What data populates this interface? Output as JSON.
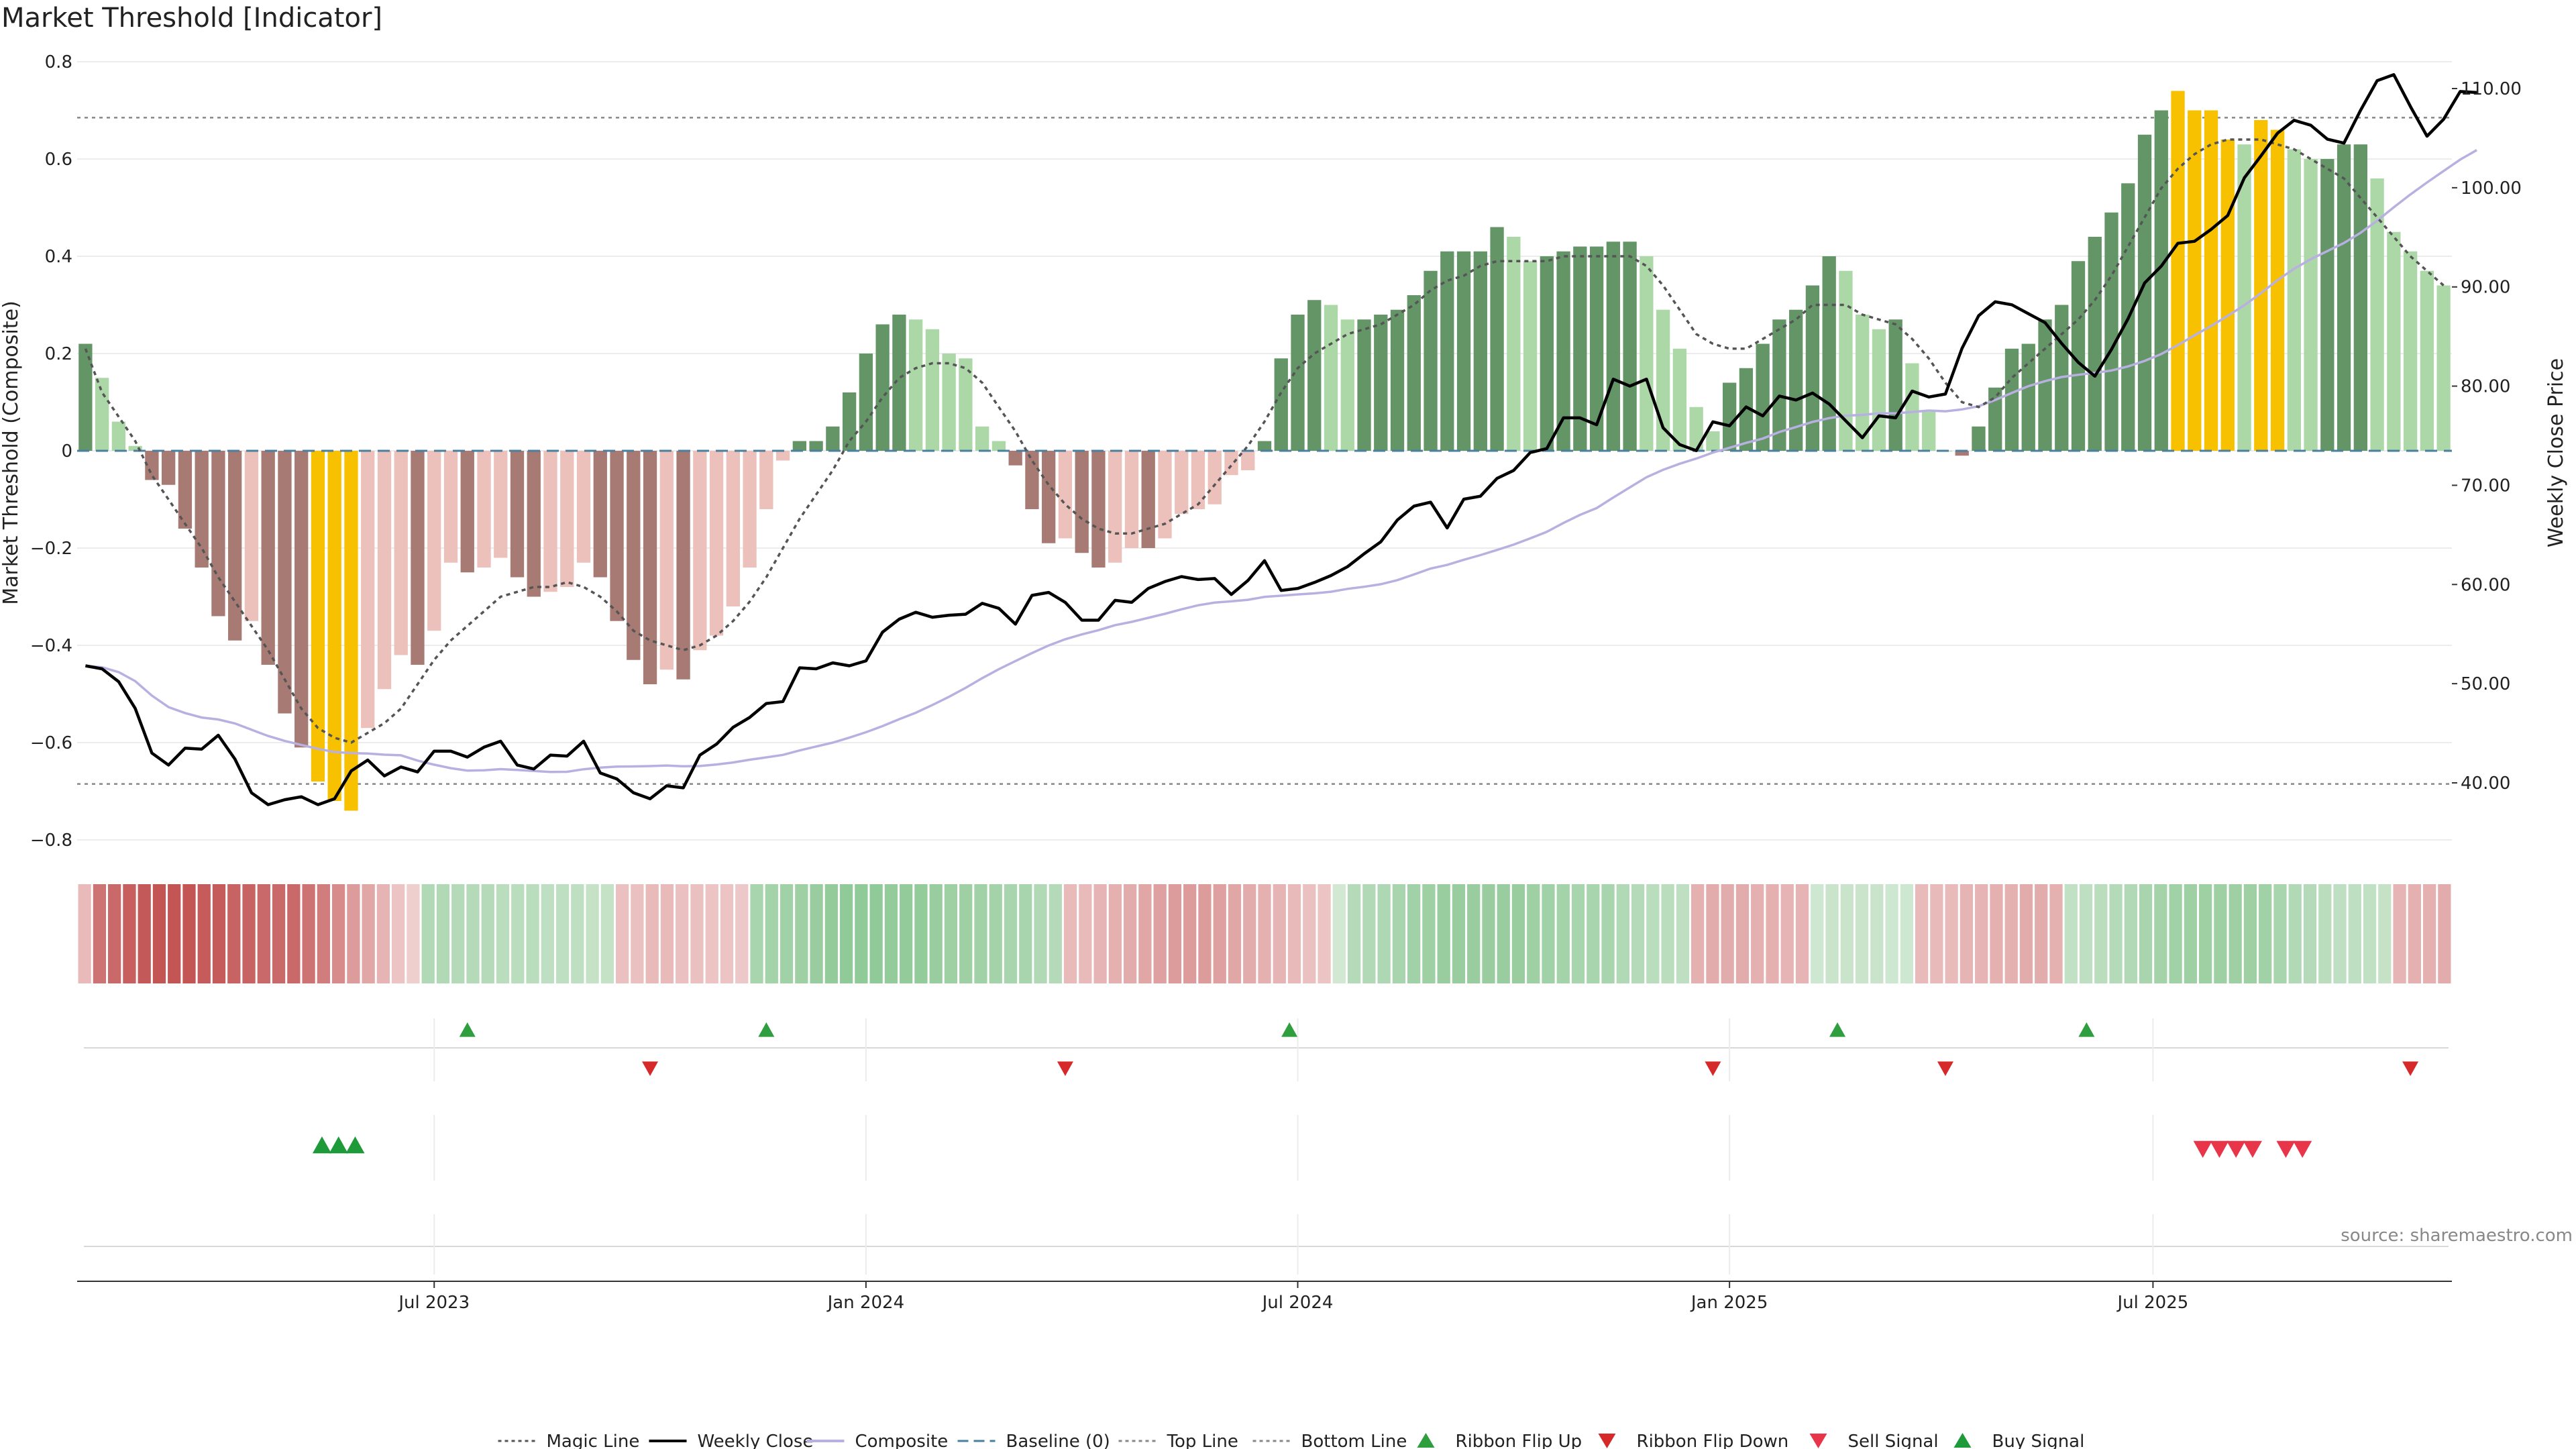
{
  "chart_data": {
    "type": "bar",
    "title": "Market Threshold [Indicator]",
    "ylabel_left": "Market Threshold (Composite)",
    "ylabel_right": "Weekly Close Price",
    "ylim_left": [
      -0.8,
      0.8
    ],
    "ylim_right": [
      35,
      110
    ],
    "left_ticks": [
      "0.8",
      "0.6",
      "0.4",
      "0.2",
      "0",
      "−0.2",
      "−0.4",
      "−0.6",
      "−0.8"
    ],
    "left_tick_values": [
      0.8,
      0.6,
      0.4,
      0.2,
      0,
      -0.2,
      -0.4,
      -0.6,
      -0.8
    ],
    "right_ticks": [
      "110.00",
      "100.00",
      "90.00",
      "80.00",
      "70.00",
      "60.00",
      "50.00",
      "40.00"
    ],
    "right_tick_values": [
      110,
      100,
      90,
      80,
      70,
      60,
      50,
      40
    ],
    "x_ticks": [
      "Jul 2023",
      "Jan 2024",
      "Jul 2024",
      "Jan 2025",
      "Jul 2025"
    ],
    "x_tick_weeks": [
      21,
      47,
      73,
      99,
      124.5
    ],
    "top_line": 0.685,
    "bottom_line": -0.685,
    "composite": [
      0.22,
      0.15,
      0.06,
      0.01,
      -0.06,
      -0.07,
      -0.16,
      -0.24,
      -0.34,
      -0.39,
      -0.35,
      -0.44,
      -0.54,
      -0.61,
      -0.68,
      -0.72,
      -0.74,
      -0.57,
      -0.49,
      -0.42,
      -0.44,
      -0.37,
      -0.23,
      -0.25,
      -0.24,
      -0.22,
      -0.26,
      -0.3,
      -0.29,
      -0.28,
      -0.23,
      -0.26,
      -0.35,
      -0.43,
      -0.48,
      -0.45,
      -0.47,
      -0.41,
      -0.38,
      -0.32,
      -0.24,
      -0.12,
      -0.02,
      0.02,
      0.02,
      0.05,
      0.12,
      0.2,
      0.26,
      0.28,
      0.27,
      0.25,
      0.2,
      0.19,
      0.05,
      0.02,
      -0.03,
      -0.12,
      -0.19,
      -0.18,
      -0.21,
      -0.24,
      -0.23,
      -0.2,
      -0.2,
      -0.18,
      -0.13,
      -0.12,
      -0.11,
      -0.05,
      -0.04,
      0.02,
      0.19,
      0.28,
      0.31,
      0.3,
      0.27,
      0.27,
      0.28,
      0.29,
      0.32,
      0.37,
      0.41,
      0.41,
      0.41,
      0.46,
      0.44,
      0.39,
      0.4,
      0.41,
      0.42,
      0.42,
      0.43,
      0.43,
      0.4,
      0.29,
      0.21,
      0.09,
      0.04,
      0.14,
      0.17,
      0.22,
      0.27,
      0.29,
      0.34,
      0.4,
      0.37,
      0.28,
      0.25,
      0.27,
      0.18,
      0.08,
      0.0,
      -0.01,
      0.05,
      0.13,
      0.21,
      0.22,
      0.27,
      0.3,
      0.39,
      0.44,
      0.49,
      0.55,
      0.65,
      0.7,
      0.74,
      0.7,
      0.7,
      0.64,
      0.63,
      0.68,
      0.66,
      0.62,
      0.6,
      0.6,
      0.63,
      0.63,
      0.56,
      0.45,
      0.41,
      0.37,
      0.34
    ],
    "bar_signal_weeks": [
      14,
      15,
      16,
      126,
      127,
      128,
      129,
      131,
      132
    ],
    "weekly_close": [
      51.8,
      51.5,
      50.2,
      47.5,
      43.0,
      41.8,
      43.5,
      43.4,
      44.8,
      42.4,
      39.0,
      37.8,
      38.3,
      38.6,
      37.8,
      38.4,
      41.2,
      42.3,
      40.7,
      41.6,
      41.1,
      43.2,
      43.2,
      42.6,
      43.6,
      44.2,
      41.8,
      41.4,
      42.8,
      42.7,
      44.2,
      41.0,
      40.4,
      39.0,
      38.4,
      39.7,
      39.5,
      42.8,
      43.9,
      45.6,
      46.6,
      48.0,
      48.2,
      51.6,
      51.5,
      52.1,
      51.8,
      52.3,
      55.2,
      56.5,
      57.2,
      56.7,
      56.9,
      57.0,
      58.1,
      57.6,
      56.0,
      58.9,
      59.2,
      58.2,
      56.4,
      56.4,
      58.4,
      58.2,
      59.6,
      60.3,
      60.8,
      60.5,
      60.6,
      59.0,
      60.4,
      62.4,
      59.4,
      59.6,
      60.2,
      60.9,
      61.8,
      63.1,
      64.3,
      66.5,
      67.9,
      68.3,
      65.7,
      68.6,
      68.9,
      70.7,
      71.5,
      73.3,
      73.7,
      76.8,
      76.8,
      76.1,
      80.7,
      80.0,
      80.7,
      75.8,
      74.1,
      73.5,
      76.4,
      76.0,
      77.9,
      77.0,
      79.0,
      78.6,
      79.3,
      78.2,
      76.5,
      74.8,
      77.0,
      76.8,
      79.5,
      78.9,
      79.2,
      83.8,
      87.1,
      88.5,
      88.2,
      87.3,
      86.4,
      84.3,
      82.4,
      81.0,
      83.7,
      86.8,
      90.4,
      92.1,
      94.4,
      94.6,
      95.8,
      97.2,
      101.0,
      103.2,
      105.5,
      106.8,
      106.3,
      104.9,
      104.5,
      107.8,
      110.8,
      111.4,
      108.2,
      105.2,
      106.9,
      109.7,
      109.6
    ],
    "magic_line": [
      0.21,
      0.12,
      0.07,
      0.02,
      -0.05,
      -0.1,
      -0.15,
      -0.2,
      -0.26,
      -0.31,
      -0.36,
      -0.41,
      -0.47,
      -0.53,
      -0.57,
      -0.59,
      -0.6,
      -0.58,
      -0.56,
      -0.53,
      -0.48,
      -0.43,
      -0.39,
      -0.36,
      -0.33,
      -0.3,
      -0.29,
      -0.28,
      -0.28,
      -0.27,
      -0.28,
      -0.3,
      -0.33,
      -0.37,
      -0.39,
      -0.4,
      -0.41,
      -0.4,
      -0.38,
      -0.35,
      -0.31,
      -0.26,
      -0.2,
      -0.14,
      -0.09,
      -0.04,
      0.02,
      0.06,
      0.11,
      0.15,
      0.17,
      0.18,
      0.18,
      0.17,
      0.14,
      0.09,
      0.04,
      -0.02,
      -0.07,
      -0.11,
      -0.14,
      -0.16,
      -0.17,
      -0.17,
      -0.16,
      -0.15,
      -0.13,
      -0.11,
      -0.07,
      -0.03,
      0.01,
      0.06,
      0.12,
      0.17,
      0.2,
      0.22,
      0.24,
      0.25,
      0.26,
      0.28,
      0.3,
      0.33,
      0.35,
      0.36,
      0.38,
      0.39,
      0.39,
      0.39,
      0.39,
      0.4,
      0.4,
      0.4,
      0.4,
      0.4,
      0.38,
      0.34,
      0.29,
      0.24,
      0.22,
      0.21,
      0.21,
      0.23,
      0.25,
      0.27,
      0.3,
      0.3,
      0.3,
      0.28,
      0.27,
      0.26,
      0.23,
      0.19,
      0.14,
      0.1,
      0.09,
      0.11,
      0.15,
      0.18,
      0.21,
      0.24,
      0.27,
      0.31,
      0.36,
      0.42,
      0.48,
      0.54,
      0.58,
      0.61,
      0.63,
      0.64,
      0.64,
      0.64,
      0.63,
      0.62,
      0.6,
      0.58,
      0.56,
      0.52,
      0.48,
      0.44,
      0.4,
      0.37,
      0.34
    ],
    "ribbon": [
      -0.15,
      -0.5,
      -0.55,
      -0.6,
      -0.63,
      -0.65,
      -0.65,
      -0.65,
      -0.62,
      -0.62,
      -0.58,
      -0.58,
      -0.55,
      -0.55,
      -0.55,
      -0.5,
      -0.45,
      -0.38,
      -0.3,
      -0.25,
      -0.18,
      -0.1,
      -0.05,
      0.3,
      0.3,
      0.28,
      0.28,
      0.28,
      0.25,
      0.25,
      0.25,
      0.22,
      0.22,
      0.22,
      0.18,
      0.18,
      -0.12,
      -0.12,
      -0.15,
      -0.15,
      -0.12,
      -0.12,
      -0.1,
      -0.1,
      -0.08,
      0.35,
      0.38,
      0.4,
      0.42,
      0.45,
      0.48,
      0.5,
      0.5,
      0.5,
      0.48,
      0.48,
      0.48,
      0.45,
      0.42,
      0.42,
      0.4,
      0.38,
      0.35,
      0.35,
      0.3,
      0.28,
      -0.15,
      -0.15,
      -0.18,
      -0.2,
      -0.22,
      -0.25,
      -0.28,
      -0.3,
      -0.3,
      -0.3,
      -0.28,
      -0.25,
      -0.22,
      -0.2,
      -0.18,
      -0.15,
      -0.12,
      -0.1,
      0.1,
      0.28,
      0.3,
      0.32,
      0.35,
      0.4,
      0.42,
      0.45,
      0.45,
      0.45,
      0.45,
      0.45,
      0.45,
      0.42,
      0.4,
      0.38,
      0.35,
      0.35,
      0.35,
      0.3,
      0.28,
      0.25,
      0.25,
      0.22,
      -0.2,
      -0.22,
      -0.22,
      -0.22,
      -0.2,
      -0.2,
      -0.18,
      -0.18,
      0.12,
      0.15,
      0.15,
      0.15,
      0.15,
      0.12,
      0.12,
      -0.15,
      -0.15,
      -0.15,
      -0.18,
      -0.18,
      -0.2,
      -0.2,
      -0.22,
      -0.22,
      -0.2,
      0.2,
      0.22,
      0.25,
      0.28,
      0.3,
      0.35,
      0.38,
      0.4,
      0.42,
      0.42,
      0.42,
      0.42,
      0.42,
      0.4,
      0.35,
      0.3,
      0.28,
      0.25,
      0.22,
      0.22,
      0.2,
      0.18,
      -0.18,
      -0.2,
      -0.2,
      -0.22
    ],
    "ribbon_flip_up_weeks": [
      23,
      41,
      72.5,
      105.5,
      120.5
    ],
    "ribbon_flip_down_weeks": [
      34,
      59,
      98,
      112,
      140
    ],
    "buy_signal_weeks": [
      14,
      15,
      16
    ],
    "sell_signal_weeks": [
      127.5,
      128.5,
      129.5,
      130.5,
      132.5,
      133.5
    ],
    "legend": [
      {
        "label": "Magic Line",
        "style": "dotted-line",
        "color": "#555555"
      },
      {
        "label": "Weekly Close",
        "style": "line",
        "color": "#000000"
      },
      {
        "label": "Composite",
        "style": "line",
        "color": "#b8b0e0"
      },
      {
        "label": "Baseline (0)",
        "style": "dashed-line",
        "color": "#4a7fa0"
      },
      {
        "label": "Top Line",
        "style": "dotted-line",
        "color": "#888888"
      },
      {
        "label": "Bottom Line",
        "style": "dotted-line",
        "color": "#888888"
      },
      {
        "label": "Ribbon Flip Up",
        "style": "triangle-up",
        "color": "#2e9e3f"
      },
      {
        "label": "Ribbon Flip Down",
        "style": "triangle-down",
        "color": "#d62a2a"
      },
      {
        "label": "Sell Signal",
        "style": "triangle-down",
        "color": "#e8354a"
      },
      {
        "label": "Buy Signal",
        "style": "triangle-up",
        "color": "#1f9a3a"
      }
    ],
    "source": "source: sharemaestro.com",
    "colors": {
      "bull_strong": "#649567",
      "bull_weak": "#acd8a8",
      "bear_strong": "#a87a74",
      "bear_weak": "#ecc1bb",
      "signal_bar": "#f8c100",
      "close_line": "#000000",
      "composite_line": "#b8b0e0",
      "magic_line": "#555555",
      "baseline": "#4a7fa0",
      "threshold_lines": "#888888"
    }
  }
}
